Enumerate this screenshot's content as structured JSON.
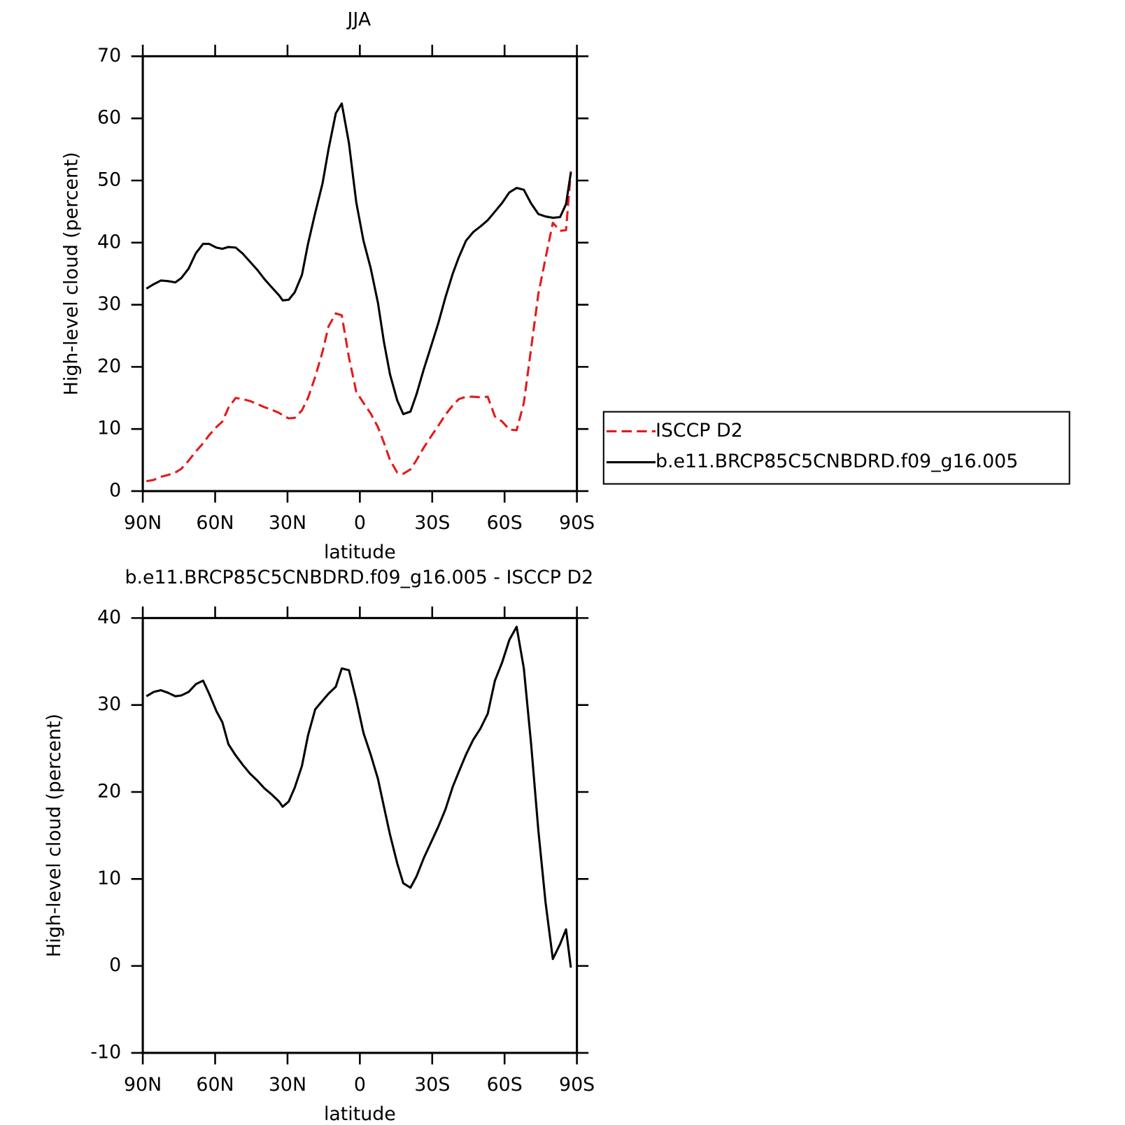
{
  "chart_data": [
    {
      "type": "line",
      "title": "JJA",
      "xlabel": "latitude",
      "ylabel": "High-level cloud (percent)",
      "x": [
        88.5,
        85.5,
        82.5,
        79.5,
        76.5,
        74,
        71,
        68,
        65,
        62.5,
        59.5,
        57,
        54.5,
        51.5,
        48.5,
        45.5,
        42.5,
        39.5,
        36.5,
        33.5,
        32,
        29.5,
        27,
        24,
        21.5,
        18.5,
        15.5,
        13,
        10,
        7.5,
        4.5,
        1.5,
        -1.5,
        -4.5,
        -7.5,
        -10,
        -12.5,
        -15.5,
        -18,
        -21,
        -23.5,
        -26.5,
        -29.5,
        -32.5,
        -35.5,
        -38.5,
        -41,
        -44,
        -47,
        -50,
        -53,
        -56,
        -59,
        -62,
        -65,
        -68,
        -71,
        -74,
        -77,
        -80,
        -83,
        -85.5,
        -87.5
      ],
      "series": [
        {
          "name": "ISCCP D2",
          "color": "#e41a1c",
          "line_style": "dashed",
          "values": [
            1.6,
            1.8,
            2.3,
            2.6,
            3.0,
            3.6,
            4.9,
            6.4,
            7.7,
            9.0,
            10.3,
            11.2,
            13.4,
            15.0,
            14.8,
            14.5,
            14.0,
            13.5,
            13.1,
            12.6,
            12.2,
            11.7,
            11.8,
            13.0,
            15.0,
            18.4,
            22.4,
            26.5,
            28.6,
            28.3,
            21.5,
            16.0,
            14.2,
            12.5,
            10.3,
            7.8,
            5.0,
            3.0,
            2.8,
            3.5,
            5.0,
            7.0,
            8.8,
            10.5,
            12.3,
            13.8,
            14.8,
            15.2,
            15.2,
            15.1,
            15.2,
            12.0,
            11.2,
            9.9,
            9.8,
            14.2,
            23.0,
            31.7,
            37.5,
            43.2,
            41.9,
            42.0,
            51.5
          ]
        },
        {
          "name": "b.e11.BRCP85C5CNBDRD.f09_g16.005",
          "color": "#000000",
          "line_style": "solid",
          "values": [
            32.6,
            33.3,
            33.9,
            33.8,
            33.6,
            34.3,
            35.8,
            38.3,
            39.8,
            39.8,
            39.2,
            39.0,
            39.3,
            39.2,
            38.2,
            36.9,
            35.6,
            34.1,
            32.8,
            31.5,
            30.7,
            30.8,
            32.0,
            34.8,
            39.8,
            44.8,
            49.5,
            55.0,
            60.8,
            62.4,
            56.0,
            46.5,
            40.3,
            35.9,
            30.3,
            24.0,
            18.8,
            14.6,
            12.4,
            12.8,
            15.6,
            19.6,
            23.3,
            27.0,
            31.2,
            35.0,
            37.6,
            40.3,
            41.7,
            42.6,
            43.6,
            45.0,
            46.4,
            48.1,
            48.8,
            48.5,
            46.3,
            44.6,
            44.2,
            44.0,
            44.1,
            46.2,
            51.3
          ]
        }
      ],
      "xlim": [
        90,
        -90
      ],
      "xticks": [
        {
          "value": 90,
          "label": "90N"
        },
        {
          "value": 60,
          "label": "60N"
        },
        {
          "value": 30,
          "label": "30N"
        },
        0,
        {
          "value": -30,
          "label": "30S"
        },
        {
          "value": -60,
          "label": "60S"
        },
        {
          "value": -90,
          "label": "90S"
        }
      ],
      "ylim": [
        0,
        70
      ],
      "yticks": [
        0,
        10,
        20,
        30,
        40,
        50,
        60,
        70
      ],
      "legend": "outside-right"
    },
    {
      "type": "line",
      "title": "b.e11.BRCP85C5CNBDRD.f09_g16.005 - ISCCP D2",
      "xlabel": "latitude",
      "ylabel": "High-level cloud (percent)",
      "x": [
        88.5,
        85.5,
        82.5,
        79.5,
        76.5,
        74,
        71,
        68,
        65,
        62.5,
        59.5,
        57,
        54.5,
        51.5,
        48.5,
        45.5,
        42.5,
        39.5,
        36.5,
        33.5,
        32,
        29.5,
        27,
        24,
        21.5,
        18.5,
        15.5,
        13,
        10,
        7.5,
        4.5,
        1.5,
        -1.5,
        -4.5,
        -7.5,
        -10,
        -12.5,
        -15.5,
        -18,
        -21,
        -23.5,
        -26.5,
        -29.5,
        -32.5,
        -35.5,
        -38.5,
        -41,
        -44,
        -47,
        -50,
        -53,
        -56,
        -59,
        -62,
        -65,
        -68,
        -71,
        -74,
        -77,
        -80,
        -83,
        -85.5,
        -87.5
      ],
      "series": [
        {
          "color": "#000000",
          "line_style": "solid",
          "values": [
            31.0,
            31.5,
            31.7,
            31.4,
            31.0,
            31.1,
            31.5,
            32.4,
            32.8,
            31.3,
            29.3,
            28.0,
            25.5,
            24.2,
            23.1,
            22.1,
            21.3,
            20.4,
            19.7,
            18.9,
            18.3,
            18.9,
            20.5,
            23.0,
            26.5,
            29.5,
            30.5,
            31.3,
            32.1,
            34.2,
            34.0,
            30.6,
            26.8,
            24.3,
            21.5,
            18.3,
            15.1,
            11.8,
            9.5,
            9.0,
            10.3,
            12.4,
            14.2,
            16.0,
            18.0,
            20.6,
            22.3,
            24.3,
            26.0,
            27.3,
            29.0,
            32.8,
            34.9,
            37.5,
            39.0,
            34.2,
            25.5,
            15.6,
            7.3,
            0.8,
            2.5,
            4.2,
            -0.2
          ]
        }
      ],
      "xlim": [
        90,
        -90
      ],
      "xticks": [
        {
          "value": 90,
          "label": "90N"
        },
        {
          "value": 60,
          "label": "60N"
        },
        {
          "value": 30,
          "label": "30N"
        },
        0,
        {
          "value": -30,
          "label": "30S"
        },
        {
          "value": -60,
          "label": "60S"
        },
        {
          "value": -90,
          "label": "90S"
        }
      ],
      "ylim": [
        -10,
        40
      ],
      "yticks": [
        -10,
        0,
        10,
        20,
        30,
        40
      ]
    }
  ]
}
